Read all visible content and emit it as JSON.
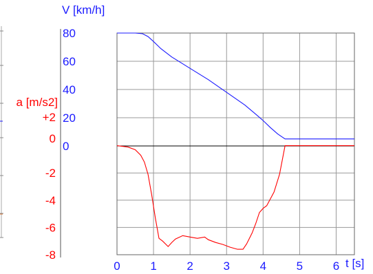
{
  "colors": {
    "velocity": "#1a1aff",
    "acceleration": "#ff0000",
    "grid": "#999999",
    "axis": "#000000",
    "frame": "#666666"
  },
  "chart_data": {
    "type": "line",
    "x_axis": {
      "label": "t [s]",
      "range": [
        0,
        6.5
      ],
      "ticks": [
        0,
        1,
        2,
        3,
        4,
        5,
        6
      ],
      "tick_labels": [
        "0",
        "1",
        "2",
        "3",
        "4",
        "5",
        "6"
      ]
    },
    "velocity_axis": {
      "label": "V [km/h]",
      "range": [
        0,
        80
      ],
      "ticks": [
        0,
        20,
        40,
        60,
        80
      ],
      "tick_labels": [
        "0",
        "20",
        "40",
        "60",
        "80"
      ]
    },
    "acceleration_axis": {
      "label": "a [m/s2]",
      "range": [
        -8,
        2
      ],
      "ticks": [
        2,
        0,
        -2,
        -4,
        -6,
        -8
      ],
      "tick_labels": [
        "+2",
        "0",
        "-2",
        "-4",
        "-6",
        "-8"
      ]
    },
    "grid": true,
    "series": [
      {
        "name": "V [km/h]",
        "axis": "velocity",
        "x": [
          0.0,
          0.2,
          0.5,
          0.7,
          0.85,
          1.0,
          1.2,
          1.5,
          2.0,
          2.5,
          3.0,
          3.5,
          3.8,
          4.0,
          4.2,
          4.4,
          4.6,
          5.0,
          5.5,
          6.0,
          6.5
        ],
        "y": [
          80,
          80,
          80,
          79.5,
          77.5,
          74,
          69,
          63,
          55,
          47,
          38,
          29,
          22.5,
          18,
          13,
          8.5,
          5,
          5,
          5,
          5,
          5
        ]
      },
      {
        "name": "a [m/s2]",
        "axis": "acceleration",
        "x": [
          0.0,
          0.3,
          0.5,
          0.65,
          0.75,
          0.85,
          0.95,
          1.05,
          1.15,
          1.25,
          1.4,
          1.5,
          1.6,
          1.8,
          2.0,
          2.2,
          2.4,
          2.5,
          2.7,
          2.9,
          3.1,
          3.3,
          3.45,
          3.55,
          3.7,
          3.8,
          3.9,
          4.0,
          4.1,
          4.3,
          4.45,
          4.6,
          5.0,
          5.5,
          6.0,
          6.5
        ],
        "y": [
          0.0,
          -0.1,
          -0.3,
          -0.7,
          -1.2,
          -2.1,
          -3.6,
          -5.3,
          -6.8,
          -7.0,
          -7.4,
          -7.1,
          -6.85,
          -6.6,
          -6.7,
          -6.8,
          -6.7,
          -6.9,
          -7.1,
          -7.25,
          -7.45,
          -7.6,
          -7.6,
          -7.2,
          -6.4,
          -5.7,
          -4.9,
          -4.6,
          -4.4,
          -3.4,
          -2.1,
          0.0,
          0.0,
          0.0,
          0.0,
          0.0
        ]
      }
    ]
  }
}
